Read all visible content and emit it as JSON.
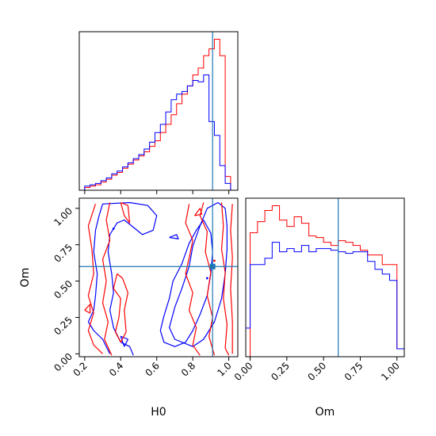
{
  "chart_data": {
    "type": "corner",
    "colors": {
      "red": "#ff0000",
      "blue": "#0000ff",
      "truth": "#1f77b4",
      "frame": "#000000"
    },
    "truth": {
      "H0": 0.91,
      "Om": 0.6
    },
    "panels": [
      {
        "id": "hist-H0",
        "type": "histogram",
        "xlim": [
          0.17,
          1.05
        ],
        "x_ticks": [
          0.2,
          0.4,
          0.6,
          0.8,
          1.0
        ],
        "x_ticklabels_shown": false,
        "y_ticks_shown": false,
        "bin_edges": [
          0.17,
          0.2,
          0.23,
          0.26,
          0.29,
          0.32,
          0.35,
          0.38,
          0.41,
          0.44,
          0.47,
          0.5,
          0.53,
          0.56,
          0.59,
          0.62,
          0.65,
          0.68,
          0.71,
          0.74,
          0.77,
          0.8,
          0.83,
          0.86,
          0.89,
          0.92,
          0.95,
          0.98,
          1.01,
          1.05
        ],
        "series": [
          {
            "color_key": "red",
            "values": [
              0,
              2,
              3,
              4,
              6,
              8,
              11,
              13,
              16,
              19,
              22,
              25,
              28,
              32,
              36,
              42,
              48,
              55,
              63,
              70,
              76,
              84,
              89,
              98,
              103,
              110,
              98,
              10,
              0
            ]
          },
          {
            "color_key": "blue",
            "values": [
              0,
              3,
              4,
              5,
              7,
              9,
              12,
              14,
              17,
              20,
              23,
              26,
              30,
              35,
              42,
              48,
              57,
              66,
              70,
              72,
              76,
              80,
              79,
              84,
              50,
              40,
              18,
              5,
              0
            ]
          }
        ]
      },
      {
        "id": "contour-H0-Om",
        "type": "contour2d",
        "xlabel": "H0",
        "ylabel": "Om",
        "xlim": [
          0.17,
          1.05
        ],
        "ylim": [
          -0.02,
          1.07
        ],
        "x_ticks": [
          0.2,
          0.4,
          0.6,
          0.8,
          1.0
        ],
        "x_ticklabels": [
          "0.2",
          "0.4",
          "0.6",
          "0.8",
          "1.0"
        ],
        "y_ticks": [
          0.0,
          0.25,
          0.5,
          0.75,
          1.0
        ],
        "y_ticklabels": [
          "0.00",
          "0.25",
          "0.50",
          "0.75",
          "1.00"
        ],
        "contours": [
          {
            "color_key": "blue",
            "points": [
              [
                0.22,
                0.22
              ],
              [
                0.25,
                0.3
              ],
              [
                0.26,
                0.4
              ],
              [
                0.27,
                0.55
              ],
              [
                0.25,
                0.7
              ],
              [
                0.26,
                0.85
              ],
              [
                0.28,
                0.95
              ],
              [
                0.3,
                1.03
              ],
              [
                0.45,
                1.04
              ],
              [
                0.55,
                1.02
              ],
              [
                0.6,
                0.95
              ],
              [
                0.58,
                0.85
              ],
              [
                0.52,
                0.82
              ],
              [
                0.48,
                0.86
              ],
              [
                0.42,
                0.92
              ],
              [
                0.38,
                0.9
              ],
              [
                0.34,
                0.82
              ],
              [
                0.33,
                0.7
              ],
              [
                0.35,
                0.55
              ],
              [
                0.36,
                0.42
              ],
              [
                0.34,
                0.3
              ],
              [
                0.36,
                0.18
              ],
              [
                0.4,
                0.08
              ],
              [
                0.45,
                0.05
              ],
              [
                0.47,
                -0.01
              ]
            ]
          },
          {
            "color_key": "blue",
            "points": [
              [
                0.34,
                0.0
              ],
              [
                0.3,
                0.1
              ],
              [
                0.25,
                0.16
              ],
              [
                0.22,
                0.22
              ]
            ]
          },
          {
            "color_key": "blue",
            "points": [
              [
                0.86,
                0.92
              ],
              [
                0.82,
                0.85
              ],
              [
                0.78,
                0.76
              ],
              [
                0.74,
                0.62
              ],
              [
                0.69,
                0.5
              ],
              [
                0.67,
                0.38
              ],
              [
                0.64,
                0.26
              ],
              [
                0.62,
                0.16
              ],
              [
                0.64,
                0.08
              ],
              [
                0.7,
                0.05
              ],
              [
                0.76,
                0.08
              ],
              [
                0.8,
                0.16
              ],
              [
                0.84,
                0.27
              ],
              [
                0.88,
                0.4
              ],
              [
                0.9,
                0.55
              ],
              [
                0.91,
                0.7
              ],
              [
                0.9,
                0.83
              ],
              [
                0.86,
                0.92
              ]
            ]
          },
          {
            "color_key": "blue",
            "points": [
              [
                0.94,
                1.04
              ],
              [
                0.88,
                1.0
              ],
              [
                0.84,
                0.88
              ],
              [
                0.8,
                0.74
              ],
              [
                0.78,
                0.6
              ],
              [
                0.74,
                0.45
              ],
              [
                0.7,
                0.32
              ],
              [
                0.67,
                0.18
              ],
              [
                0.7,
                0.1
              ],
              [
                0.8,
                0.05
              ],
              [
                0.86,
                0.1
              ],
              [
                0.92,
                0.22
              ],
              [
                0.96,
                0.38
              ],
              [
                0.98,
                0.55
              ],
              [
                0.99,
                0.72
              ],
              [
                0.99,
                0.88
              ],
              [
                0.98,
                1.0
              ],
              [
                0.94,
                1.04
              ]
            ]
          },
          {
            "color_key": "blue",
            "points": [
              [
                0.42,
                0.05
              ],
              [
                0.44,
                0.1
              ],
              [
                0.4,
                0.12
              ],
              [
                0.42,
                0.05
              ]
            ]
          },
          {
            "color_key": "blue",
            "points": [
              [
                0.67,
                0.8
              ],
              [
                0.72,
                0.79
              ],
              [
                0.71,
                0.82
              ],
              [
                0.67,
                0.8
              ]
            ]
          },
          {
            "color_key": "red",
            "points": [
              [
                0.26,
                1.03
              ],
              [
                0.22,
                0.88
              ],
              [
                0.24,
                0.72
              ],
              [
                0.25,
                0.55
              ],
              [
                0.22,
                0.4
              ],
              [
                0.25,
                0.28
              ],
              [
                0.22,
                0.16
              ],
              [
                0.25,
                0.06
              ],
              [
                0.3,
                0.0
              ]
            ]
          },
          {
            "color_key": "red",
            "points": [
              [
                0.34,
                1.04
              ],
              [
                0.32,
                0.92
              ],
              [
                0.34,
                0.78
              ],
              [
                0.3,
                0.65
              ],
              [
                0.32,
                0.5
              ],
              [
                0.3,
                0.35
              ],
              [
                0.33,
                0.22
              ],
              [
                0.31,
                0.1
              ],
              [
                0.35,
                -0.01
              ]
            ]
          },
          {
            "color_key": "red",
            "points": [
              [
                0.38,
                0.55
              ],
              [
                0.36,
                0.45
              ],
              [
                0.4,
                0.38
              ],
              [
                0.39,
                0.25
              ],
              [
                0.37,
                0.15
              ],
              [
                0.4,
                0.08
              ],
              [
                0.43,
                0.15
              ],
              [
                0.42,
                0.3
              ],
              [
                0.44,
                0.42
              ],
              [
                0.41,
                0.52
              ],
              [
                0.38,
                0.55
              ]
            ]
          },
          {
            "color_key": "red",
            "points": [
              [
                0.4,
                1.04
              ],
              [
                0.42,
                0.95
              ],
              [
                0.45,
                0.9
              ],
              [
                0.44,
                1.02
              ],
              [
                0.4,
                1.04
              ]
            ]
          },
          {
            "color_key": "red",
            "points": [
              [
                0.78,
                1.03
              ],
              [
                0.76,
                0.9
              ],
              [
                0.8,
                0.78
              ],
              [
                0.78,
                0.66
              ],
              [
                0.76,
                0.55
              ],
              [
                0.8,
                0.42
              ],
              [
                0.78,
                0.3
              ],
              [
                0.82,
                0.18
              ],
              [
                0.8,
                0.06
              ],
              [
                0.84,
                -0.01
              ]
            ]
          },
          {
            "color_key": "red",
            "points": [
              [
                0.86,
                1.04
              ],
              [
                0.84,
                0.95
              ],
              [
                0.88,
                0.84
              ],
              [
                0.87,
                0.7
              ],
              [
                0.9,
                0.56
              ],
              [
                0.88,
                0.4
              ],
              [
                0.91,
                0.25
              ],
              [
                0.89,
                0.12
              ],
              [
                0.92,
                -0.01
              ]
            ]
          },
          {
            "color_key": "red",
            "points": [
              [
                0.96,
                1.04
              ],
              [
                0.97,
                0.88
              ],
              [
                0.96,
                0.72
              ],
              [
                0.98,
                0.56
              ],
              [
                0.97,
                0.38
              ],
              [
                0.99,
                0.2
              ],
              [
                0.98,
                0.04
              ],
              [
                1.0,
                -0.01
              ]
            ]
          },
          {
            "color_key": "red",
            "points": [
              [
                1.02,
                1.03
              ],
              [
                1.01,
                0.85
              ],
              [
                1.02,
                0.66
              ],
              [
                1.01,
                0.45
              ],
              [
                1.02,
                0.22
              ],
              [
                1.02,
                0.0
              ]
            ]
          },
          {
            "color_key": "red",
            "points": [
              [
                0.81,
                0.95
              ],
              [
                0.85,
                0.96
              ],
              [
                0.84,
                1.0
              ],
              [
                0.81,
                0.95
              ]
            ]
          },
          {
            "color_key": "red",
            "points": [
              [
                0.2,
                0.3
              ],
              [
                0.23,
                0.28
              ],
              [
                0.23,
                0.34
              ],
              [
                0.2,
                0.3
              ]
            ]
          }
        ],
        "dots": [
          {
            "color_key": "blue",
            "x": 0.88,
            "y": 0.52
          },
          {
            "color_key": "red",
            "x": 0.92,
            "y": 0.64
          },
          {
            "color_key": "blue",
            "x": 0.36,
            "y": 0.86
          }
        ],
        "truth_marker": {
          "x": 0.91,
          "y": 0.6
        }
      },
      {
        "id": "hist-Om",
        "type": "histogram",
        "xlabel": "Om",
        "xlim": [
          -0.03,
          1.05
        ],
        "x_ticks": [
          0.0,
          0.25,
          0.5,
          0.75,
          1.0
        ],
        "x_ticklabels": [
          "0.00",
          "0.25",
          "0.50",
          "0.75",
          "1.00"
        ],
        "y_ticks_shown": false,
        "bin_edges": [
          -0.03,
          0.0,
          0.05,
          0.1,
          0.15,
          0.2,
          0.25,
          0.3,
          0.35,
          0.4,
          0.45,
          0.5,
          0.55,
          0.6,
          0.65,
          0.7,
          0.75,
          0.8,
          0.85,
          0.9,
          0.95,
          1.0,
          1.05
        ],
        "series": [
          {
            "color_key": "red",
            "values": [
              0,
              78,
              85,
              92,
              95,
              86,
              82,
              88,
              84,
              76,
              75,
              72,
              70,
              73,
              72,
              70,
              67,
              64,
              64,
              58,
              58,
              5
            ]
          },
          {
            "color_key": "blue",
            "values": [
              18,
              58,
              58,
              62,
              72,
              66,
              68,
              66,
              70,
              66,
              68,
              68,
              67,
              66,
              65,
              66,
              66,
              60,
              55,
              52,
              48,
              5
            ]
          }
        ]
      }
    ]
  }
}
